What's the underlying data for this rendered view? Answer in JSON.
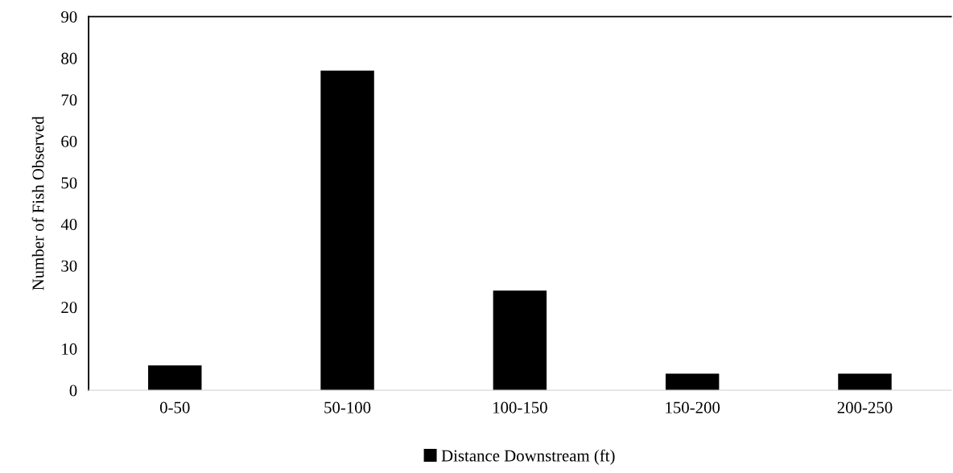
{
  "chart_data": {
    "type": "bar",
    "ylabel": "Number of Fish Observed",
    "categories": [
      "0-50",
      "50-100",
      "100-150",
      "150-200",
      "200-250"
    ],
    "series": [
      {
        "name": "Distance Downstream (ft)",
        "color": "#000000",
        "values": [
          6,
          77,
          24,
          4,
          4
        ]
      }
    ],
    "ylim": [
      0,
      90
    ],
    "yticks": [
      0,
      10,
      20,
      30,
      40,
      50,
      60,
      70,
      80,
      90
    ],
    "grid": false,
    "legend": "bottom"
  }
}
